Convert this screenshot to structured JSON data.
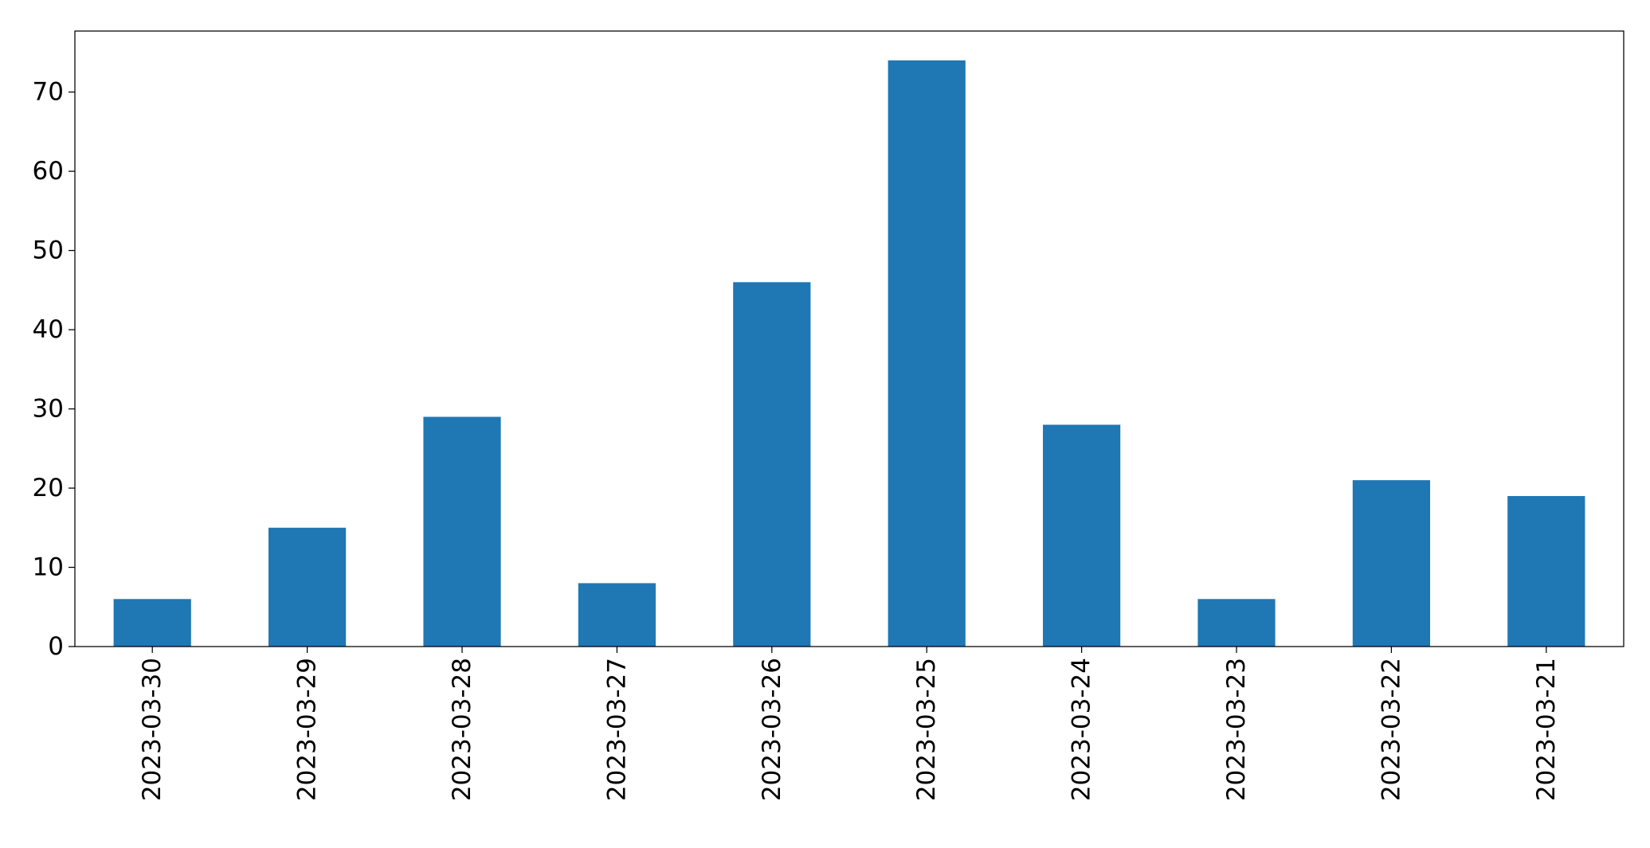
{
  "chart_data": {
    "type": "bar",
    "title": "",
    "xlabel": "",
    "ylabel": "",
    "categories": [
      "2023-03-30",
      "2023-03-29",
      "2023-03-28",
      "2023-03-27",
      "2023-03-26",
      "2023-03-25",
      "2023-03-24",
      "2023-03-23",
      "2023-03-22",
      "2023-03-21"
    ],
    "values": [
      6,
      15,
      29,
      8,
      46,
      74,
      28,
      6,
      21,
      19
    ],
    "ylim": [
      0,
      77.7
    ],
    "yticks": [
      0,
      10,
      20,
      30,
      40,
      50,
      60,
      70
    ],
    "grid": false,
    "legend": "none",
    "bar_color": "#1f77b4",
    "x_tick_rotation": "vertical"
  }
}
